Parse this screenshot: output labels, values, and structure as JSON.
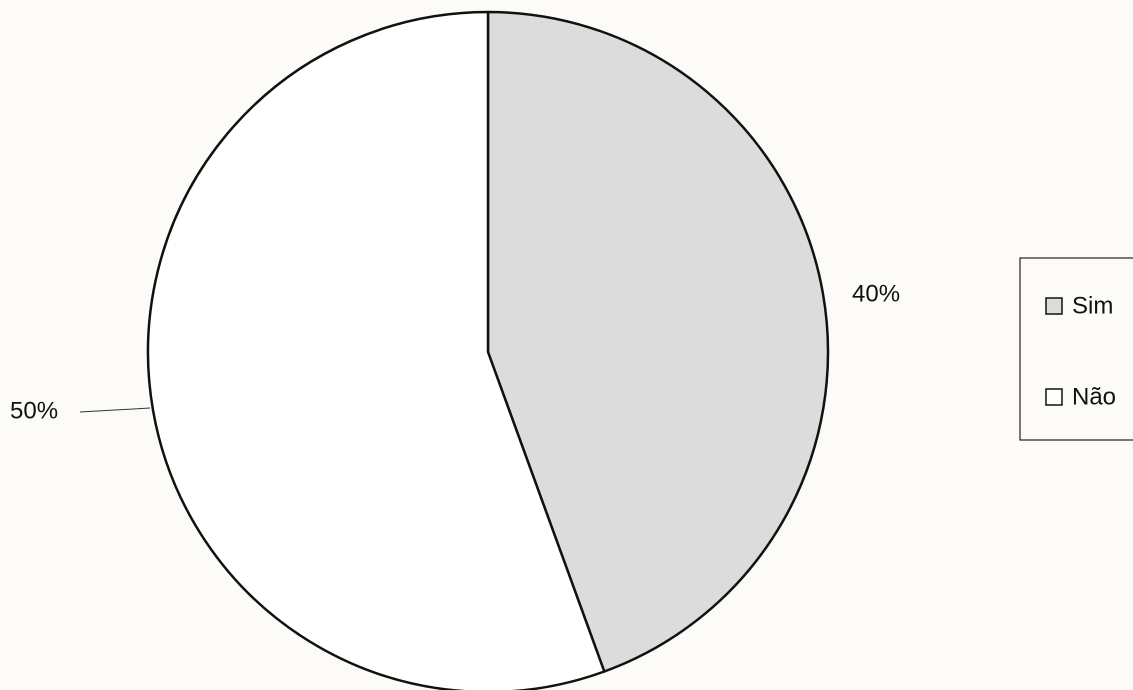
{
  "chart_data": {
    "type": "pie",
    "categories": [
      "Sim",
      "Não"
    ],
    "values": [
      40,
      50
    ],
    "value_labels": [
      "40%",
      "50%"
    ],
    "colors": [
      "#dcdcdc",
      "#ffffff"
    ],
    "legend": "right"
  }
}
